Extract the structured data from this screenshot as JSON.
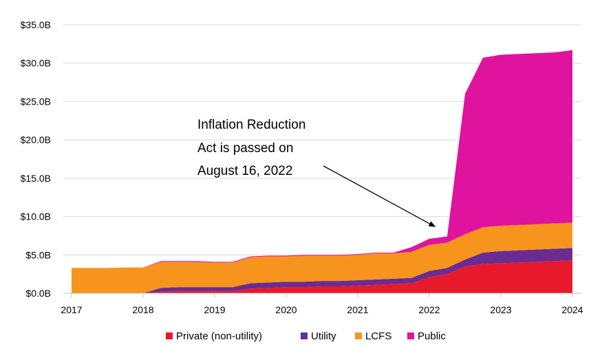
{
  "chart_data": {
    "type": "area",
    "stacked": true,
    "title": "",
    "xlabel": "",
    "ylabel": "",
    "ylim": [
      0,
      35
    ],
    "y_ticks": [
      {
        "value": 0,
        "label": "$0.0B"
      },
      {
        "value": 5,
        "label": "$5.0B"
      },
      {
        "value": 10,
        "label": "$10.0B"
      },
      {
        "value": 15,
        "label": "$15.0B"
      },
      {
        "value": 20,
        "label": "$20.0B"
      },
      {
        "value": 25,
        "label": "$25.0B"
      },
      {
        "value": 30,
        "label": "$30.0B"
      },
      {
        "value": 35,
        "label": "$35.0B"
      }
    ],
    "xlim": [
      2017,
      2024
    ],
    "x_ticks": [
      {
        "value": 2017,
        "label": "2017"
      },
      {
        "value": 2018,
        "label": "2018"
      },
      {
        "value": 2019,
        "label": "2019"
      },
      {
        "value": 2020,
        "label": "2020"
      },
      {
        "value": 2021,
        "label": "2021"
      },
      {
        "value": 2022,
        "label": "2022"
      },
      {
        "value": 2023,
        "label": "2023"
      },
      {
        "value": 2024,
        "label": "2024"
      }
    ],
    "grid": "horizontal",
    "legend_position": "bottom",
    "x": [
      2017.0,
      2017.25,
      2017.5,
      2017.75,
      2018.0,
      2018.25,
      2018.5,
      2018.75,
      2019.0,
      2019.25,
      2019.5,
      2019.75,
      2020.0,
      2020.25,
      2020.5,
      2020.75,
      2021.0,
      2021.25,
      2021.5,
      2021.75,
      2022.0,
      2022.25,
      2022.5,
      2022.75,
      2023.0,
      2023.25,
      2023.5,
      2023.75,
      2024.0
    ],
    "series": [
      {
        "name": "Private (non-utility)",
        "color": "#e8192c",
        "values": [
          0,
          0,
          0,
          0,
          0,
          0.2,
          0.3,
          0.3,
          0.3,
          0.3,
          0.6,
          0.7,
          0.8,
          0.8,
          0.9,
          0.9,
          1.0,
          1.1,
          1.2,
          1.3,
          2.1,
          2.5,
          3.5,
          3.8,
          3.9,
          4.0,
          4.1,
          4.2,
          4.3
        ]
      },
      {
        "name": "Utility",
        "color": "#6a2c91",
        "values": [
          0,
          0,
          0,
          0,
          0,
          0.5,
          0.5,
          0.5,
          0.5,
          0.5,
          0.7,
          0.7,
          0.7,
          0.7,
          0.7,
          0.7,
          0.7,
          0.7,
          0.7,
          0.7,
          0.8,
          0.8,
          0.9,
          1.5,
          1.6,
          1.6,
          1.6,
          1.6,
          1.6
        ]
      },
      {
        "name": "LCFS",
        "color": "#f7941d",
        "values": [
          3.3,
          3.3,
          3.3,
          3.35,
          3.35,
          3.4,
          3.3,
          3.3,
          3.2,
          3.2,
          3.4,
          3.4,
          3.3,
          3.4,
          3.3,
          3.3,
          3.3,
          3.4,
          3.3,
          3.4,
          3.4,
          3.3,
          3.3,
          3.3,
          3.3,
          3.3,
          3.3,
          3.3,
          3.3
        ]
      },
      {
        "name": "Public",
        "color": "#e0139f",
        "values": [
          0,
          0,
          0,
          0,
          0,
          0.1,
          0.1,
          0.1,
          0.1,
          0.1,
          0.1,
          0.1,
          0.1,
          0.1,
          0.1,
          0.1,
          0.1,
          0.1,
          0.1,
          0.6,
          0.8,
          0.8,
          18.3,
          22.1,
          22.3,
          22.3,
          22.3,
          22.3,
          22.5
        ]
      }
    ],
    "annotations": [
      {
        "lines": [
          "Inflation Reduction",
          "Act is passed on",
          "August 16, 2022"
        ],
        "arrow_to": {
          "x": 2022.1,
          "y": 8.5
        }
      }
    ]
  }
}
